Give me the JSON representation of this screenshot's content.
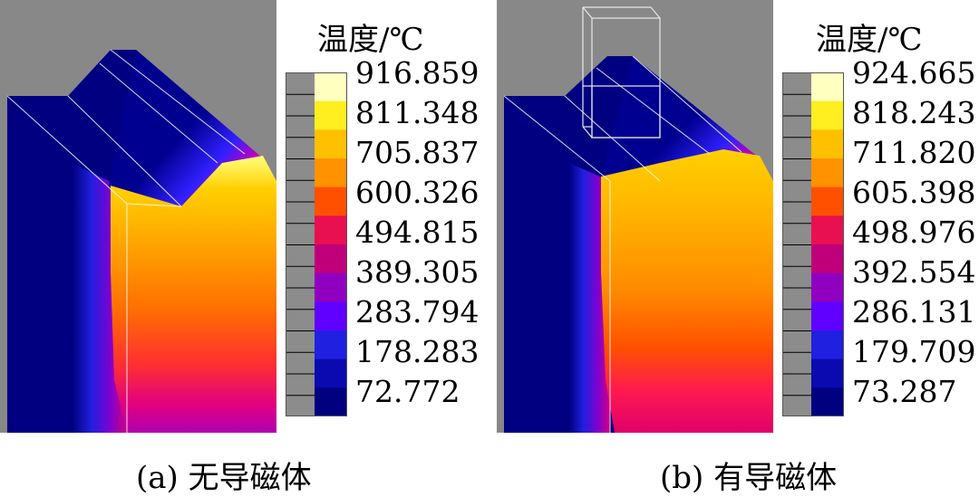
{
  "legend_title": "温度/℃",
  "colors": [
    "#000080",
    "#0a0ab0",
    "#2020e0",
    "#6000ff",
    "#9000c0",
    "#c0007a",
    "#e81050",
    "#ff5000",
    "#ff9200",
    "#ffc000",
    "#ffee20",
    "#ffffc0"
  ],
  "panels": [
    {
      "caption": "(a) 无导磁体",
      "ticks": [
        "916.859",
        "811.348",
        "705.837",
        "600.326",
        "494.815",
        "389.305",
        "283.794",
        "178.283",
        "72.772"
      ],
      "has_concentrator": false
    },
    {
      "caption": "(b) 有导磁体",
      "ticks": [
        "924.665",
        "818.243",
        "711.820",
        "605.398",
        "498.976",
        "392.554",
        "286.131",
        "179.709",
        "73.287"
      ],
      "has_concentrator": true
    }
  ]
}
